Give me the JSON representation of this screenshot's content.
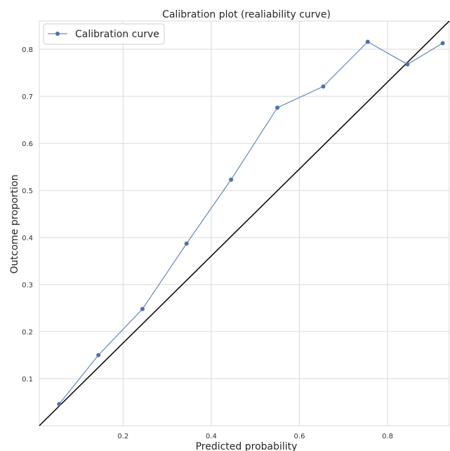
{
  "chart_data": {
    "type": "line",
    "title": "Calibration plot (realiability curve)",
    "xlabel": "Predicted probability",
    "ylabel": "Outcome proportion",
    "xlim": [
      0.01,
      0.94
    ],
    "ylim": [
      0.0,
      0.86
    ],
    "x_ticks": [
      0.2,
      0.4,
      0.6,
      0.8
    ],
    "y_ticks": [
      0.1,
      0.2,
      0.3,
      0.4,
      0.5,
      0.6,
      0.7,
      0.8
    ],
    "grid": true,
    "legend_position": "top-left",
    "series": [
      {
        "name": "Calibration curve",
        "color": "#4c72b0",
        "marker": "circle",
        "x": [
          0.055,
          0.144,
          0.244,
          0.344,
          0.445,
          0.55,
          0.654,
          0.755,
          0.845,
          0.925
        ],
        "y": [
          0.046,
          0.15,
          0.248,
          0.387,
          0.523,
          0.676,
          0.721,
          0.816,
          0.768,
          0.813
        ]
      }
    ],
    "reference_line": {
      "color": "#000000",
      "x": [
        0.01,
        0.94
      ],
      "y": [
        0.0,
        0.86
      ]
    }
  }
}
